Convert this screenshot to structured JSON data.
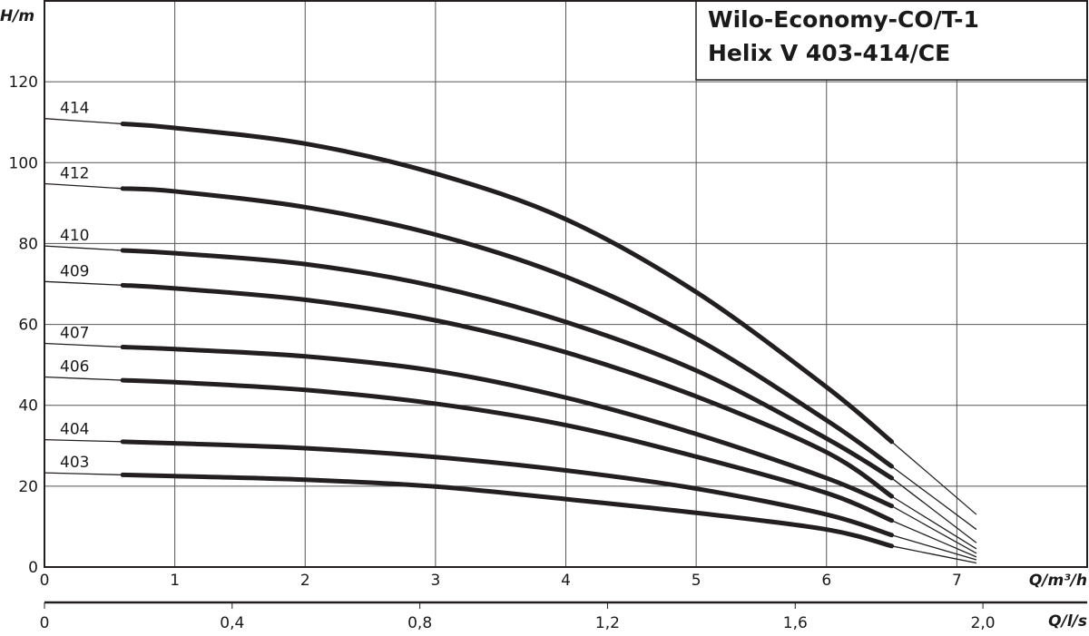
{
  "chart_data": {
    "type": "line",
    "title_lines": [
      "Wilo-Economy-CO/T-1",
      "Helix V 403-414/CE"
    ],
    "ylabel": "H/m",
    "xlabel": "Q/m³/h",
    "x2label": "Q/l/s",
    "xlim": [
      0,
      8
    ],
    "ylim": [
      0,
      140
    ],
    "x_ticks": [
      "0",
      "1",
      "2",
      "3",
      "4",
      "5",
      "6",
      "7"
    ],
    "x_tick_values": [
      0,
      1,
      2,
      3,
      4,
      5,
      6,
      7
    ],
    "y_ticks": [
      "0",
      "20",
      "40",
      "60",
      "80",
      "100",
      "120"
    ],
    "y_tick_values": [
      0,
      20,
      40,
      60,
      80,
      100,
      120
    ],
    "x2_ticks": [
      "0",
      "0,4",
      "0,8",
      "1,2",
      "1,6",
      "2,0"
    ],
    "x2_tick_values": [
      0,
      0.4,
      0.8,
      1.2,
      1.6,
      2.0
    ],
    "grid": true,
    "operating_range": [
      0.6,
      6.5
    ],
    "x": [
      0,
      0.6,
      1,
      2,
      3,
      4,
      5,
      6,
      6.5,
      7.15
    ],
    "series": [
      {
        "name": "414",
        "values": [
          110.9,
          109.6,
          108.6,
          104.7,
          97.3,
          86.0,
          68.0,
          44.5,
          31.0,
          13.0
        ]
      },
      {
        "name": "412",
        "values": [
          94.8,
          93.6,
          92.9,
          89.0,
          82.2,
          71.8,
          56.5,
          36.3,
          24.9,
          9.3
        ]
      },
      {
        "name": "410",
        "values": [
          79.4,
          78.3,
          77.6,
          74.9,
          69.4,
          60.6,
          48.6,
          31.8,
          22.0,
          6.0
        ]
      },
      {
        "name": "409",
        "values": [
          70.6,
          69.7,
          68.9,
          66.1,
          61.0,
          53.1,
          42.2,
          28.4,
          17.5,
          4.5
        ]
      },
      {
        "name": "407",
        "values": [
          55.3,
          54.4,
          53.9,
          52.1,
          48.5,
          41.9,
          32.9,
          22.0,
          15.1,
          3.4
        ]
      },
      {
        "name": "406",
        "values": [
          47.0,
          46.2,
          45.7,
          43.8,
          40.4,
          35.1,
          27.3,
          18.3,
          11.5,
          2.5
        ]
      },
      {
        "name": "404",
        "values": [
          31.5,
          31.0,
          30.6,
          29.4,
          27.2,
          23.9,
          19.4,
          13.0,
          7.9,
          1.8
        ]
      },
      {
        "name": "403",
        "values": [
          23.3,
          22.8,
          22.5,
          21.6,
          19.9,
          16.8,
          13.4,
          9.3,
          5.2,
          1.0
        ]
      }
    ],
    "colors": {
      "curve": "#231f20",
      "grid": "#555555",
      "axis": "#231f20"
    }
  }
}
